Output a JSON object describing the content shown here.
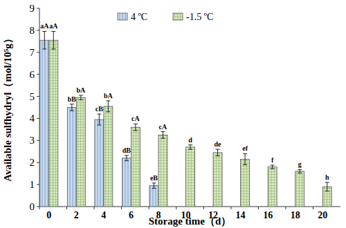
{
  "chart_data": {
    "type": "bar",
    "x_label": "Storage time（d）",
    "y_label": "Available sulfhydryl（mol/10⁵g）",
    "categories": [
      "0",
      "2",
      "4",
      "6",
      "8",
      "10",
      "12",
      "14",
      "16",
      "18",
      "20"
    ],
    "series": [
      {
        "name": "4 ºC",
        "color": "#c9dcf0",
        "values": [
          7.55,
          4.5,
          3.95,
          2.2,
          0.95,
          null,
          null,
          null,
          null,
          null,
          null
        ],
        "errors": [
          0.4,
          0.15,
          0.25,
          0.12,
          0.12,
          null,
          null,
          null,
          null,
          null,
          null
        ],
        "annotations": [
          "aA",
          "bB",
          "cB",
          "dB",
          "eB",
          null,
          null,
          null,
          null,
          null,
          null
        ]
      },
      {
        "name": "-1.5 ºC",
        "color": "#d6e8c0",
        "values": [
          7.55,
          4.95,
          4.55,
          3.6,
          3.25,
          2.7,
          2.45,
          2.15,
          1.8,
          1.6,
          0.9
        ],
        "errors": [
          0.4,
          0.1,
          0.25,
          0.15,
          0.15,
          0.1,
          0.15,
          0.25,
          0.08,
          0.08,
          0.2
        ],
        "annotations": [
          "aA",
          "bA",
          "bA",
          "cA",
          "cA",
          "d",
          "de",
          "ef",
          "f",
          "g",
          "h"
        ]
      }
    ],
    "ylim": [
      0,
      9
    ],
    "yticks": [
      0,
      1,
      2,
      3,
      4,
      5,
      6,
      7,
      8,
      9
    ],
    "grid": false,
    "legend": "top"
  }
}
